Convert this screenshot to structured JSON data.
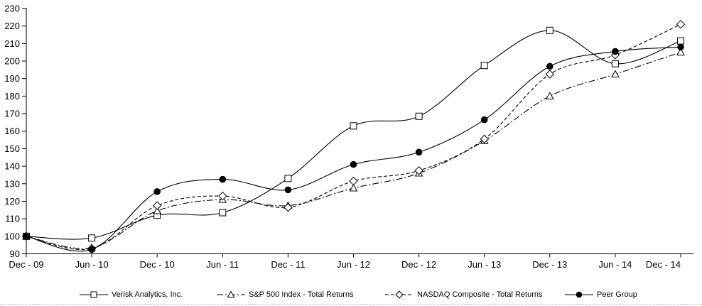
{
  "chart_data": {
    "type": "line",
    "title": "",
    "xlabel": "",
    "ylabel": "",
    "categories": [
      "Dec - 09",
      "Jun - 10",
      "Dec - 10",
      "Jun - 11",
      "Dec - 11",
      "Jun - 12",
      "Dec - 12",
      "Jun - 13",
      "Dec - 13",
      "Jun - 14",
      "Dec - 14"
    ],
    "y_ticks": [
      90,
      100,
      110,
      120,
      130,
      140,
      150,
      160,
      170,
      180,
      190,
      200,
      210,
      220,
      230
    ],
    "ylim": [
      90,
      230
    ],
    "grid": false,
    "legend_position": "bottom",
    "line_color": "#000000",
    "series": [
      {
        "name": "Verisk Analytics, Inc.",
        "marker": "square-open",
        "line_style": "solid",
        "values": [
          100,
          99,
          112,
          113.5,
          133,
          163,
          168.5,
          197.5,
          217.5,
          198.5,
          211.5
        ]
      },
      {
        "name": "S&P 500 Index - Total Returns",
        "marker": "triangle-open",
        "line_style": "dashdot",
        "values": [
          100,
          93.5,
          114.5,
          121,
          117.5,
          127.5,
          136,
          154.5,
          180,
          192.5,
          205
        ]
      },
      {
        "name": "NASDAQ Composite - Total Returns",
        "marker": "diamond-open",
        "line_style": "dashed",
        "values": [
          100,
          93,
          117.5,
          123,
          116.5,
          131.5,
          137.5,
          155.5,
          192.5,
          203.5,
          221
        ]
      },
      {
        "name": "Peer Group",
        "marker": "circle-filled",
        "line_style": "solid",
        "values": [
          100,
          92.5,
          125.5,
          132.5,
          126.5,
          141,
          148,
          166.5,
          197,
          205.5,
          208
        ]
      }
    ]
  }
}
